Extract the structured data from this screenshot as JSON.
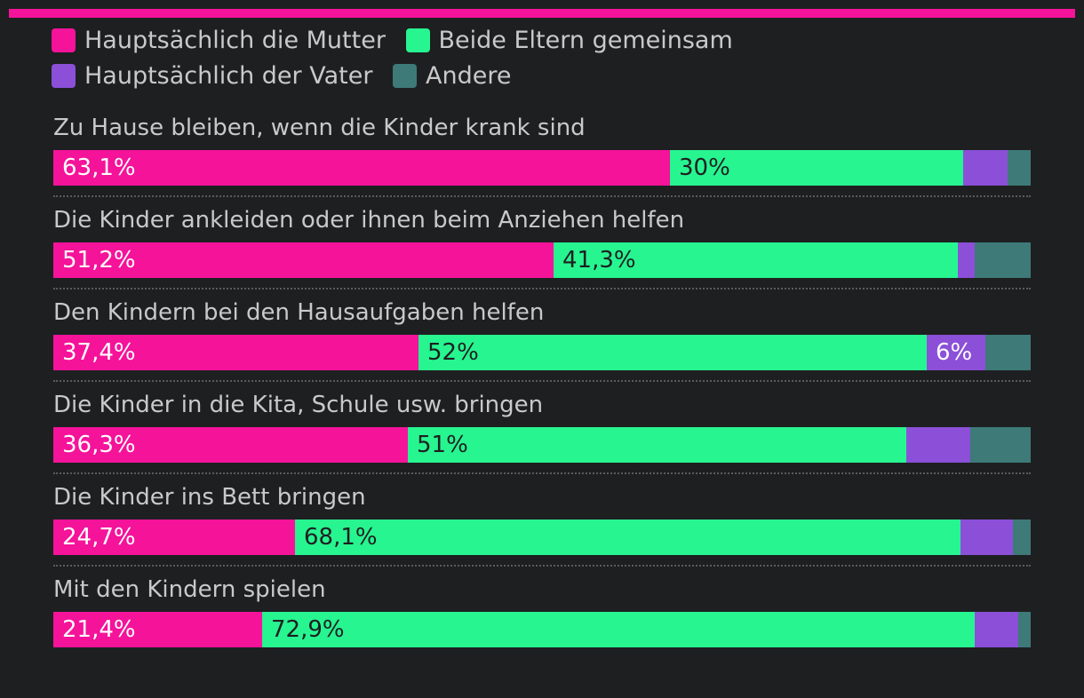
{
  "colors": {
    "mother": "#f5139a",
    "both": "#27f590",
    "father": "#8b4fd8",
    "other": "#3d7a78",
    "label_light": "#ffffff",
    "label_dark": "#1e1f21"
  },
  "legend": [
    {
      "key": "mother",
      "label": "Hauptsächlich die Mutter"
    },
    {
      "key": "both",
      "label": "Beide Eltern gemeinsam"
    },
    {
      "key": "father",
      "label": "Hauptsächlich der Vater"
    },
    {
      "key": "other",
      "label": "Andere"
    }
  ],
  "chart_data": {
    "type": "bar",
    "orientation": "horizontal",
    "stacked": true,
    "normalized": true,
    "categories": [
      "Zu Hause bleiben, wenn die Kinder krank sind",
      "Die Kinder ankleiden oder ihnen beim Anziehen helfen",
      "Den Kindern bei den Hausaufgaben helfen",
      "Die Kinder in die Kita, Schule usw. bringen",
      "Die Kinder ins Bett bringen",
      "Mit den Kindern spielen"
    ],
    "series": [
      {
        "key": "mother",
        "name": "Hauptsächlich die Mutter",
        "values": [
          63.1,
          51.2,
          37.4,
          36.3,
          24.7,
          21.4
        ],
        "labels": [
          "63,1%",
          "51,2%",
          "37,4%",
          "36,3%",
          "24,7%",
          "21,4%"
        ]
      },
      {
        "key": "both",
        "name": "Beide Eltern gemeinsam",
        "values": [
          30.0,
          41.3,
          52.0,
          51.0,
          68.1,
          72.9
        ],
        "labels": [
          "30%",
          "41,3%",
          "52%",
          "51%",
          "68,1%",
          "72,9%"
        ]
      },
      {
        "key": "father",
        "name": "Hauptsächlich der Vater",
        "values": [
          4.5,
          1.8,
          6.0,
          6.5,
          5.4,
          4.4
        ],
        "labels": [
          "",
          "",
          "6%",
          "",
          "",
          ""
        ]
      },
      {
        "key": "other",
        "name": "Andere",
        "values": [
          2.4,
          5.7,
          4.6,
          6.2,
          1.8,
          1.3
        ],
        "labels": [
          "",
          "",
          "",
          "",
          "",
          ""
        ]
      }
    ],
    "xlim": [
      0,
      100
    ],
    "unit": "%"
  }
}
